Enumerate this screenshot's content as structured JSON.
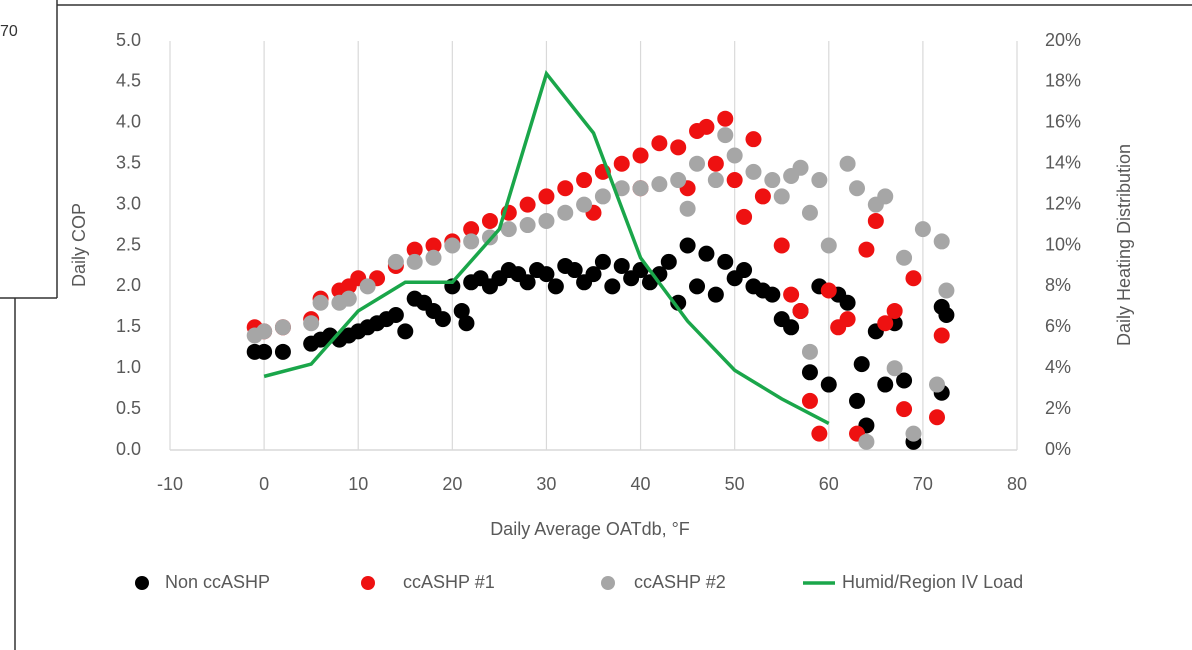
{
  "background_text": "70",
  "chart_data": {
    "type": "scatter",
    "xlabel": "Daily Average  OATdb, °F",
    "ylabel": "Daily COP",
    "y2label": "Daily Heating Distribution",
    "xlim": [
      -10,
      80
    ],
    "xticks": [
      -10,
      0,
      10,
      20,
      30,
      40,
      50,
      60,
      70,
      80
    ],
    "ylim": [
      0,
      5
    ],
    "yticks": [
      {
        "value": 0,
        "label": "0.0"
      },
      0.5,
      {
        "value": 1,
        "label": "1.0"
      },
      1.5,
      {
        "value": 2,
        "label": "2.0"
      },
      2.5,
      {
        "value": 3,
        "label": "3.0"
      },
      3.5,
      {
        "value": 4,
        "label": "4.0"
      },
      4.5,
      {
        "value": 5,
        "label": "5.0"
      }
    ],
    "y2lim": [
      0,
      20
    ],
    "y2ticks": [
      {
        "value": 0,
        "label": "0%"
      },
      {
        "value": 2,
        "label": "2%"
      },
      {
        "value": 4,
        "label": "4%"
      },
      {
        "value": 6,
        "label": "6%"
      },
      {
        "value": 8,
        "label": "8%"
      },
      {
        "value": 10,
        "label": "10%"
      },
      {
        "value": 12,
        "label": "12%"
      },
      {
        "value": 14,
        "label": "14%"
      },
      {
        "value": 16,
        "label": "16%"
      },
      {
        "value": 18,
        "label": "18%"
      },
      {
        "value": 20,
        "label": "20%"
      }
    ],
    "grid": "x",
    "legend": "bottom",
    "series": [
      {
        "name": "Non ccASHP",
        "color": "#000000",
        "x": [
          -1,
          0,
          2,
          5,
          6,
          7,
          8,
          9,
          10,
          11,
          12,
          13,
          14,
          15,
          16,
          17,
          18,
          19,
          20,
          21,
          21.5,
          22,
          23,
          24,
          25,
          26,
          27,
          28,
          29,
          30,
          31,
          32,
          33,
          34,
          35,
          36,
          37,
          38,
          39,
          40,
          41,
          42,
          43,
          44,
          45,
          46,
          47,
          48,
          49,
          50,
          51,
          52,
          53,
          54,
          55,
          56,
          57,
          58,
          59,
          60,
          61,
          62,
          63,
          63.5,
          64,
          65,
          66,
          67,
          68,
          69,
          72,
          72.5,
          72
        ],
        "values": [
          1.2,
          1.2,
          1.2,
          1.3,
          1.35,
          1.4,
          1.35,
          1.4,
          1.45,
          1.5,
          1.55,
          1.6,
          1.65,
          1.45,
          1.85,
          1.8,
          1.7,
          1.6,
          2.0,
          1.7,
          1.55,
          2.05,
          2.1,
          2.0,
          2.1,
          2.2,
          2.15,
          2.05,
          2.2,
          2.15,
          2.0,
          2.25,
          2.2,
          2.05,
          2.15,
          2.3,
          2.0,
          2.25,
          2.1,
          2.2,
          2.05,
          2.15,
          2.3,
          1.8,
          2.5,
          2.0,
          2.4,
          1.9,
          2.3,
          2.1,
          2.2,
          2.0,
          1.95,
          1.9,
          1.6,
          1.5,
          1.7,
          0.95,
          2.0,
          0.8,
          1.9,
          1.8,
          0.6,
          1.05,
          0.3,
          1.45,
          0.8,
          1.55,
          0.85,
          0.1,
          1.75,
          1.65,
          0.7
        ]
      },
      {
        "name": "ccASHP #1",
        "color": "#ee1111",
        "x": [
          -1,
          0,
          2,
          5,
          6,
          8,
          9,
          10,
          12,
          14,
          16,
          18,
          20,
          22,
          24,
          26,
          28,
          30,
          32,
          34,
          36,
          38,
          40,
          42,
          44,
          46,
          47,
          49,
          48,
          50,
          52,
          51,
          53,
          55,
          56,
          57,
          58,
          59,
          60,
          61,
          62,
          63,
          64,
          65,
          66,
          67,
          68,
          69,
          72,
          71.5,
          45,
          40,
          35
        ],
        "values": [
          1.5,
          1.45,
          1.5,
          1.6,
          1.85,
          1.95,
          2.0,
          2.1,
          2.1,
          2.25,
          2.45,
          2.5,
          2.55,
          2.7,
          2.8,
          2.9,
          3.0,
          3.1,
          3.2,
          3.3,
          3.4,
          3.5,
          3.6,
          3.75,
          3.7,
          3.9,
          3.95,
          4.05,
          3.5,
          3.3,
          3.8,
          2.85,
          3.1,
          2.5,
          1.9,
          1.7,
          0.6,
          0.2,
          1.95,
          1.5,
          1.6,
          0.2,
          2.45,
          2.8,
          1.55,
          1.7,
          0.5,
          2.1,
          1.4,
          0.4,
          3.2,
          3.2,
          2.9
        ]
      },
      {
        "name": "ccASHP #2",
        "color": "#a6a6a6",
        "x": [
          -1,
          0,
          2,
          5,
          6,
          8,
          9,
          11,
          14,
          16,
          18,
          20,
          22,
          24,
          26,
          28,
          30,
          32,
          34,
          36,
          38,
          40,
          42,
          44,
          45,
          46,
          48,
          49,
          50,
          52,
          54,
          56,
          57,
          58,
          59,
          60,
          62,
          63,
          64,
          65,
          66,
          67,
          68,
          69,
          70,
          72,
          71.5,
          72.5,
          58,
          55
        ],
        "values": [
          1.4,
          1.45,
          1.5,
          1.55,
          1.8,
          1.8,
          1.85,
          2.0,
          2.3,
          2.3,
          2.35,
          2.5,
          2.55,
          2.6,
          2.7,
          2.75,
          2.8,
          2.9,
          3.0,
          3.1,
          3.2,
          3.2,
          3.25,
          3.3,
          2.95,
          3.5,
          3.3,
          3.85,
          3.6,
          3.4,
          3.3,
          3.35,
          3.45,
          1.2,
          3.3,
          2.5,
          3.5,
          3.2,
          0.1,
          3.0,
          3.1,
          1.0,
          2.35,
          0.2,
          2.7,
          2.55,
          0.8,
          1.95,
          2.9,
          3.1
        ]
      },
      {
        "name": "Humid/Region IV Load",
        "color": "#1aa64a",
        "type": "line",
        "axis": "y2",
        "x": [
          0,
          5,
          10,
          15,
          20,
          25,
          30,
          35,
          40,
          45,
          50,
          55,
          60
        ],
        "values": [
          3.6,
          4.2,
          6.8,
          8.2,
          8.2,
          10.8,
          18.4,
          15.5,
          9.4,
          6.3,
          3.9,
          2.5,
          1.3
        ]
      }
    ]
  }
}
